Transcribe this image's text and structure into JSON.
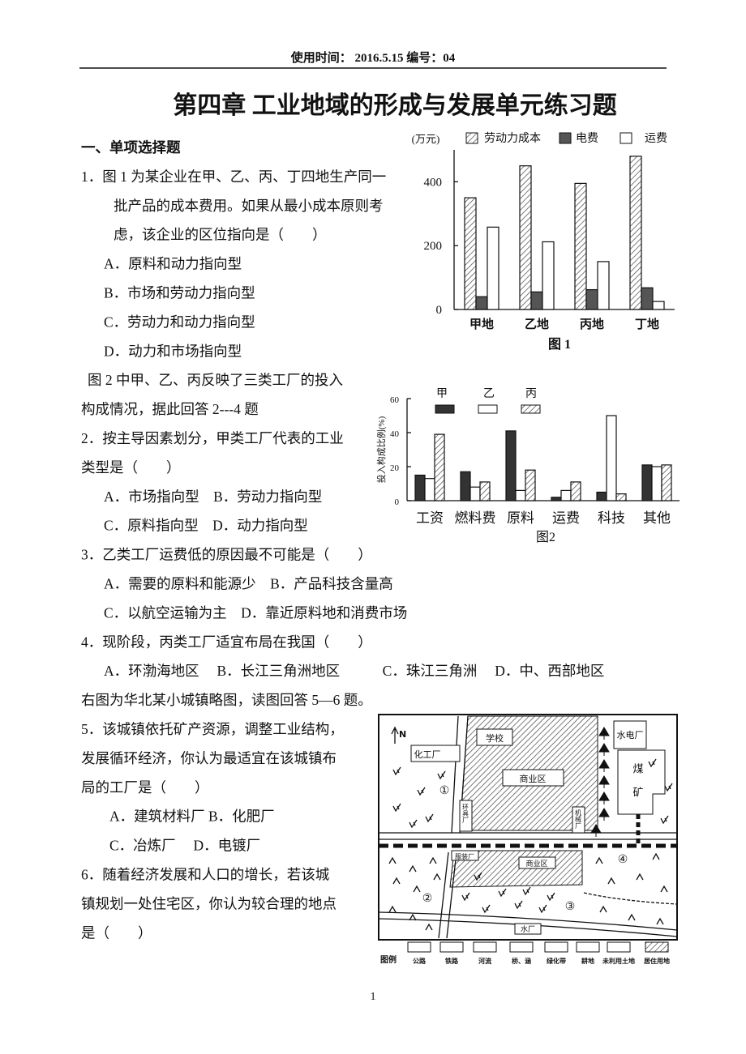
{
  "header": "使用时间：  2016.5.15  编号：04",
  "title": "第四章  工业地域的形成与发展单元练习题",
  "lines": [
    "一、单项选择题",
    "1．图 1 为某企业在甲、乙、丙、丁四地生产同一",
    "批产品的成本费用。如果从最小成本原则考",
    "虑，该企业的区位指向是（　　）",
    "A．原料和动力指向型",
    "B．市场和劳动力指向型",
    "C．劳动力和动力指向型",
    "D．动力和市场指向型",
    "图 2 中甲、乙、丙反映了三类工厂的投入",
    "构成情况，据此回答 2---4 题",
    "2．按主导因素划分，甲类工厂代表的工业",
    "类型是（　　）",
    "A．市场指向型　B．劳动力指向型",
    "C．原料指向型　D．动力指向型",
    "3．乙类工厂运费低的原因最不可能是（　　）",
    "A．需要的原料和能源少　B．产品科技含量高",
    "C．以航空运输为主　D．靠近原料地和消费市场",
    "4．现阶段，丙类工厂适宜布局在我国（　　）",
    "A．环渤海地区　 B．长江三角洲地区　　　C．珠江三角洲　 D．中、西部地区",
    "右图为华北某小城镇略图，读图回答 5—6 题。",
    "5．该城镇依托矿产资源，调整工业结构，",
    "发展循环经济，你认为最适宜在该城镇布",
    "局的工厂是（　　）",
    "A．建筑材料厂 B．化肥厂",
    "C．冶炼厂　 D．电镀厂",
    "6．随着经济发展和人口的增长，若该城",
    "镇规划一处住宅区，你认为较合理的地点",
    "是（　　）"
  ],
  "chart_data": [
    {
      "type": "bar",
      "title": "图 1",
      "y_label": "(万元)",
      "legend": "top",
      "categories": [
        "甲地",
        "乙地",
        "丙地",
        "丁地"
      ],
      "series": [
        {
          "name": "劳动力成本",
          "color": "#ffffff",
          "pattern": "hatch",
          "values": [
            350,
            450,
            395,
            480
          ]
        },
        {
          "name": "电费",
          "color": "#555555",
          "values": [
            40,
            55,
            62,
            68
          ]
        },
        {
          "name": "运费",
          "color": "#ffffff",
          "values": [
            258,
            212,
            150,
            25
          ]
        }
      ],
      "ylim": [
        0,
        500
      ],
      "yticks": [
        0,
        200,
        400
      ]
    },
    {
      "type": "bar",
      "title": "图2",
      "y_label": "投入构成比例(%)",
      "legend": "top",
      "categories": [
        "工资",
        "燃料费",
        "原料",
        "运费",
        "科技",
        "其他"
      ],
      "series": [
        {
          "name": "甲",
          "color": "#333333",
          "values": [
            15,
            17,
            41,
            2,
            5,
            21
          ]
        },
        {
          "name": "乙",
          "color": "#ffffff",
          "values": [
            13,
            8,
            6,
            6,
            50,
            20
          ]
        },
        {
          "name": "丙",
          "color": "#ffffff",
          "pattern": "hatch",
          "values": [
            39,
            11,
            18,
            11,
            4,
            21
          ]
        }
      ],
      "ylim": [
        0,
        60
      ],
      "yticks": [
        0,
        20,
        40,
        60
      ]
    }
  ],
  "map": {
    "north": "N",
    "labels": {
      "school": "学校",
      "chemical": "化工厂",
      "commerce_top": "商业区",
      "tool": "环具厂",
      "machine": "机械厂",
      "power": "水电厂",
      "coal": "煤矿",
      "clothing": "服装厂",
      "commerce_bottom": "商业区",
      "water": "水厂"
    },
    "zones": [
      "①",
      "②",
      "③",
      "④"
    ],
    "legend_title": "图例",
    "legend": [
      "公路",
      "铁路",
      "河流",
      "桥、涵",
      "绿化带",
      "耕地",
      "未利用土地",
      "居住用地"
    ]
  },
  "page_number": "1"
}
